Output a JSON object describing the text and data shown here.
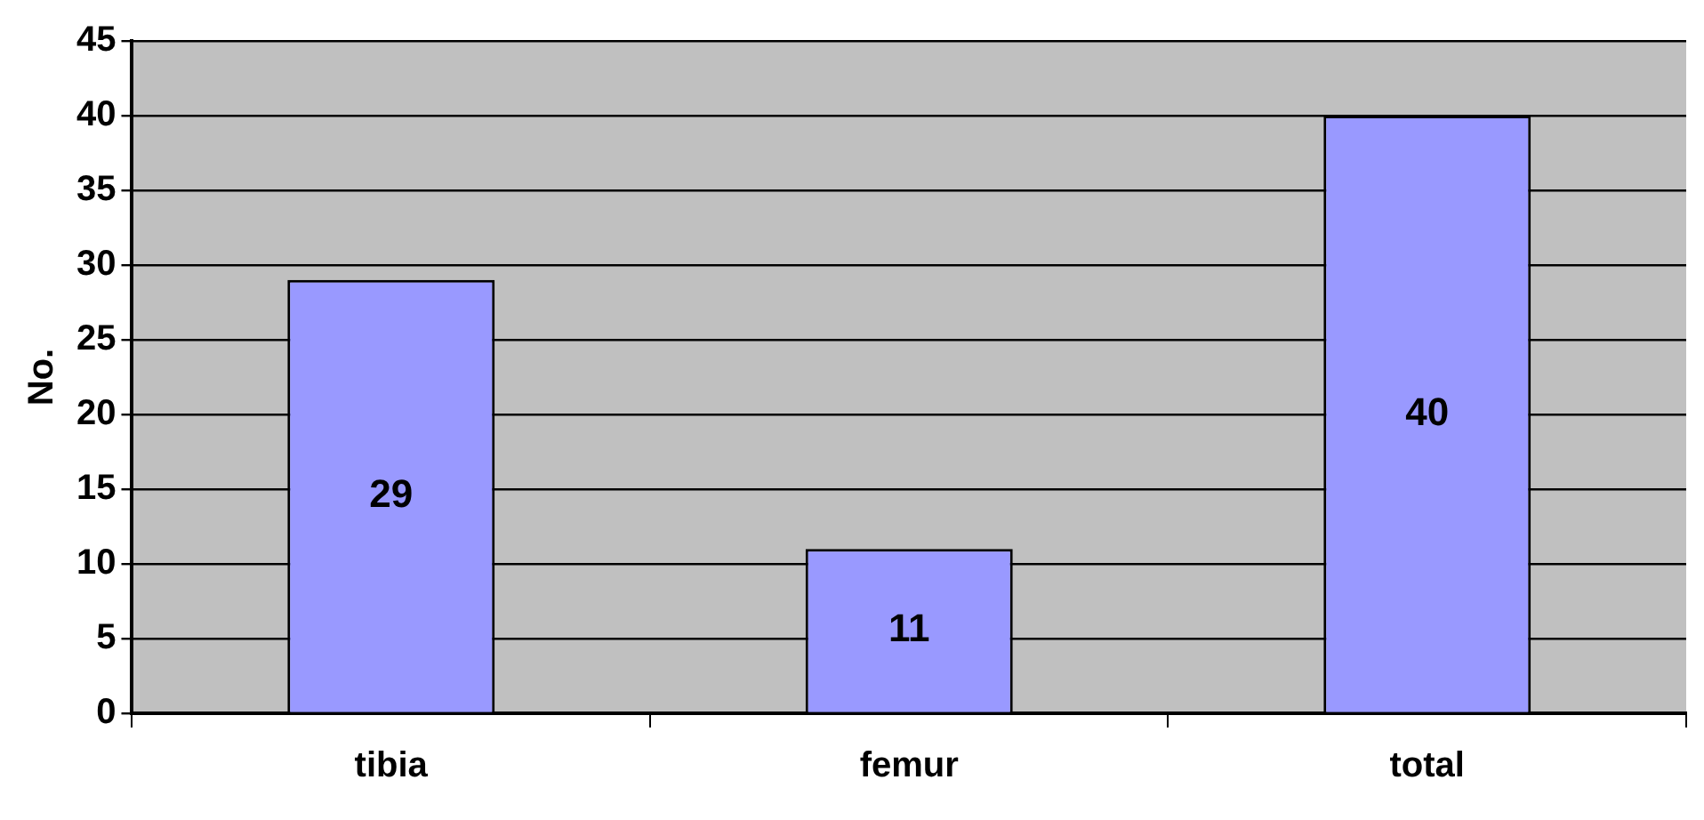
{
  "chart_data": {
    "type": "bar",
    "ylabel": "No.",
    "categories": [
      "tibia",
      "femur",
      "total"
    ],
    "values": [
      29,
      11,
      40
    ],
    "color": "#9999ff",
    "ylim": [
      0,
      45
    ],
    "yticks": [
      0,
      5,
      10,
      15,
      20,
      25,
      30,
      35,
      40,
      45
    ],
    "grid": "y",
    "legend": false,
    "data_labels": true
  }
}
